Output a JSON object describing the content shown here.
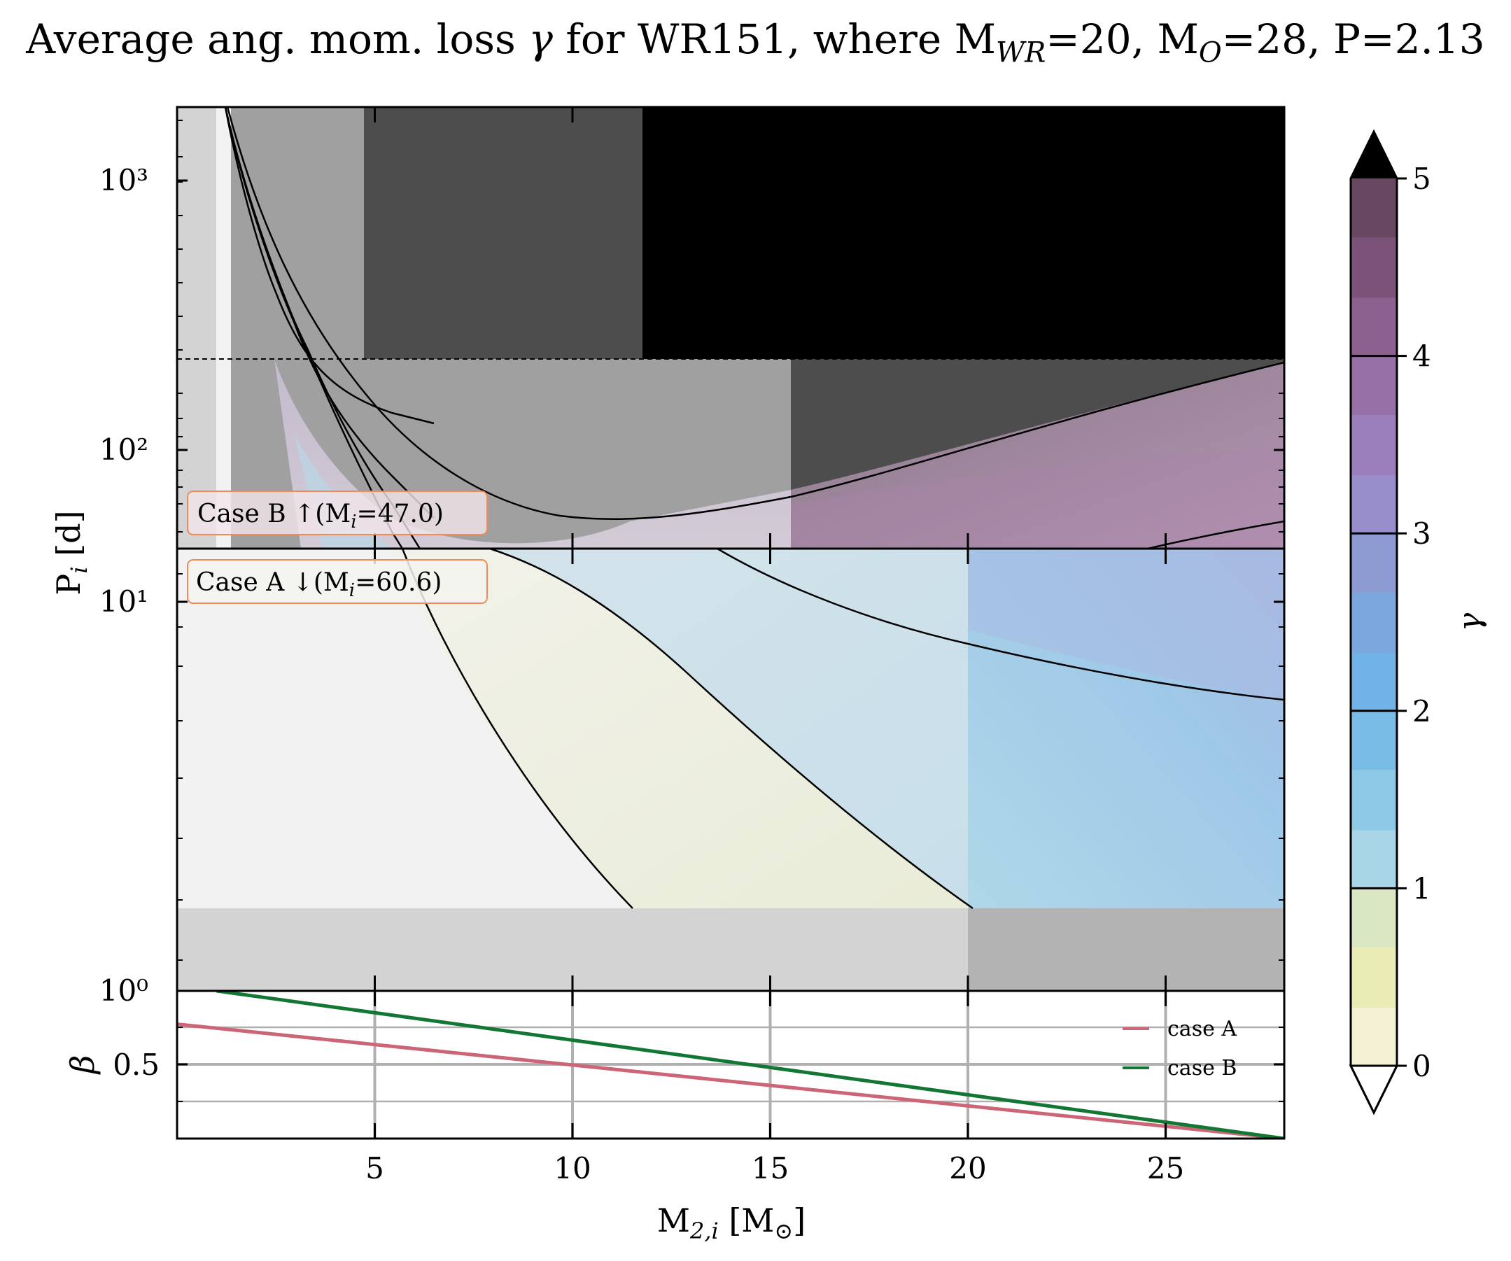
{
  "chart_data": {
    "type": "contour",
    "title": "Average ang. mom. loss γ for WR151, where M_WR=20, M_O=28, P=2.13",
    "title_parts": {
      "prefix": "Average ang. mom. loss ",
      "symbol": "γ",
      "mid": " for WR151, where M",
      "sub_wr": "WR",
      "wr_val": "=20, M",
      "sub_o": "O",
      "o_val": "=28, P=2.13"
    },
    "xlabel": "M2,i [M⊙]",
    "xlabel_parts": {
      "main": "M",
      "sub": "2,i",
      "rest": " [M",
      "sun": "⊙",
      "close": "]"
    },
    "ylabel": "Pi [d]",
    "ylabel_parts": {
      "main": "P",
      "sub": "i",
      "rest": " [d]"
    },
    "xlim": [
      0,
      28
    ],
    "xticks": [
      5,
      10,
      15,
      20,
      25
    ],
    "xtick_labels": [
      "5",
      "10",
      "15",
      "20",
      "25"
    ],
    "grid": true,
    "upper_panel": {
      "description": "Case B region",
      "yscale": "log",
      "ylim": [
        36.5,
        2000
      ],
      "ytick_labels": [
        "10³",
        "10²"
      ],
      "ytick_values": [
        1000,
        100
      ],
      "dashed_line_y": 215,
      "legend_box": "Case B ↑(Mi=47.0)",
      "legend_parts": {
        "prefix": "Case B ↑(M",
        "sub": "i",
        "suffix": "=47.0)"
      }
    },
    "lower_panel": {
      "description": "Case A region",
      "yscale": "log",
      "ylim": [
        1.0,
        14.5
      ],
      "ytick_labels": [
        "10¹",
        "10⁰"
      ],
      "ytick_values": [
        10,
        1
      ],
      "legend_box": "Case A ↓(Mi=60.6)",
      "legend_parts": {
        "prefix": "Case A ↓(M",
        "sub": "i",
        "suffix": "=60.6)"
      }
    },
    "beta_panel": {
      "ylabel": "β",
      "ytick_labels": [
        "0.5"
      ],
      "ylim": [
        0.3,
        0.7
      ],
      "series": [
        {
          "name": "case A",
          "color": "#cc6677",
          "x": [
            0,
            28
          ],
          "y": [
            0.61,
            0.3
          ]
        },
        {
          "name": "case B",
          "color": "#117733",
          "x": [
            1,
            28
          ],
          "y": [
            0.7,
            0.3
          ]
        }
      ]
    },
    "colorbar": {
      "label": "γ",
      "range": [
        0,
        5
      ],
      "tick_labels": [
        "0",
        "1",
        "2",
        "3",
        "4",
        "5"
      ],
      "extend": "both",
      "levels": [
        {
          "from": 0.0,
          "to": 0.33,
          "color": "#f4f1d4"
        },
        {
          "from": 0.33,
          "to": 0.67,
          "color": "#e9ecb4"
        },
        {
          "from": 0.67,
          "to": 1.0,
          "color": "#d9e8c2"
        },
        {
          "from": 1.0,
          "to": 1.33,
          "color": "#a9d6e6"
        },
        {
          "from": 1.33,
          "to": 1.67,
          "color": "#8cc9e6"
        },
        {
          "from": 1.67,
          "to": 2.0,
          "color": "#79bde6"
        },
        {
          "from": 2.0,
          "to": 2.33,
          "color": "#71b3e6"
        },
        {
          "from": 2.33,
          "to": 2.67,
          "color": "#7ca7de"
        },
        {
          "from": 2.67,
          "to": 3.0,
          "color": "#8e9bd3"
        },
        {
          "from": 3.0,
          "to": 3.33,
          "color": "#988ecb"
        },
        {
          "from": 3.33,
          "to": 3.67,
          "color": "#9b7fbc"
        },
        {
          "from": 3.67,
          "to": 4.0,
          "color": "#9670a7"
        },
        {
          "from": 4.0,
          "to": 4.33,
          "color": "#8c6190"
        },
        {
          "from": 4.33,
          "to": 4.67,
          "color": "#7b5379"
        },
        {
          "from": 4.67,
          "to": 5.0,
          "color": "#684860"
        }
      ]
    },
    "shading_colors": {
      "light": "#f2f2f2",
      "lightgray": "#d3d3d3",
      "midgray": "#a0a0a0",
      "gray_bottom": "#b3b3b3",
      "darkgray": "#4d4d4d",
      "black": "#000000"
    }
  }
}
